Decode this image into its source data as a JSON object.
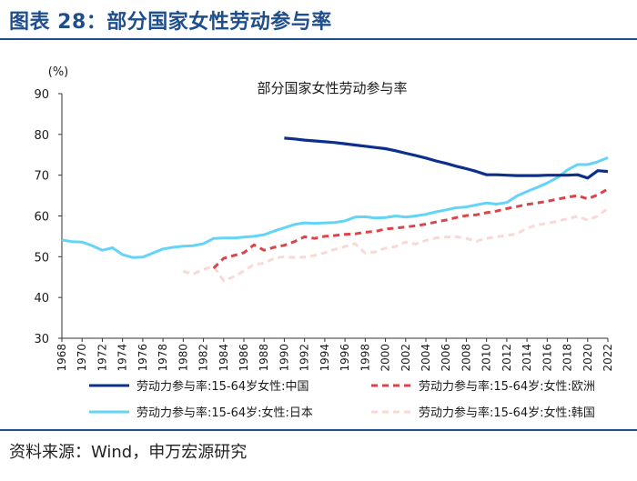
{
  "figure_title": "图表 28：部分国家女性劳动参与率",
  "source": "资料来源：Wind，申万宏源研究",
  "chart_data": {
    "type": "line",
    "title": "部分国家女性劳动参与率",
    "ylabel": "(%)",
    "xlabel": "",
    "ylim": [
      30,
      90
    ],
    "yticks": [
      30,
      40,
      50,
      60,
      70,
      80,
      90
    ],
    "xlim": [
      1968,
      2022
    ],
    "xticks": [
      1968,
      1970,
      1972,
      1974,
      1976,
      1978,
      1980,
      1982,
      1984,
      1986,
      1988,
      1990,
      1992,
      1994,
      1996,
      1998,
      2000,
      2002,
      2004,
      2006,
      2008,
      2010,
      2012,
      2014,
      2016,
      2018,
      2020,
      2022
    ],
    "grid": false,
    "series": [
      {
        "name": "劳动力参与率:15-64岁女性:中国",
        "color": "#0b2f8a",
        "style": "solid",
        "x": [
          1990,
          1991,
          1992,
          1993,
          1994,
          1995,
          1996,
          1997,
          1998,
          1999,
          2000,
          2001,
          2002,
          2003,
          2004,
          2005,
          2006,
          2007,
          2008,
          2009,
          2010,
          2011,
          2012,
          2013,
          2014,
          2015,
          2016,
          2017,
          2018,
          2019,
          2020,
          2021,
          2022
        ],
        "values": [
          79.1,
          78.9,
          78.6,
          78.4,
          78.2,
          78.0,
          77.7,
          77.4,
          77.1,
          76.8,
          76.5,
          76.0,
          75.4,
          74.8,
          74.2,
          73.5,
          72.9,
          72.2,
          71.6,
          70.9,
          70.1,
          70.1,
          70.0,
          69.9,
          69.9,
          69.9,
          70.0,
          70.0,
          70.0,
          70.1,
          69.3,
          71.1,
          70.9
        ]
      },
      {
        "name": "劳动力参与率:15-64岁:女性:欧洲",
        "color": "#d9454a",
        "style": "dashed",
        "x": [
          1983,
          1984,
          1985,
          1986,
          1987,
          1988,
          1989,
          1990,
          1991,
          1992,
          1993,
          1994,
          1995,
          1996,
          1997,
          1998,
          1999,
          2000,
          2001,
          2002,
          2003,
          2004,
          2005,
          2006,
          2007,
          2008,
          2009,
          2010,
          2011,
          2012,
          2013,
          2014,
          2015,
          2016,
          2017,
          2018,
          2019,
          2020,
          2021,
          2022
        ],
        "values": [
          47.2,
          49.6,
          50.3,
          51.0,
          52.9,
          51.6,
          52.3,
          52.8,
          53.7,
          54.9,
          54.5,
          55.0,
          55.2,
          55.5,
          55.6,
          56.0,
          56.2,
          56.8,
          57.0,
          57.3,
          57.6,
          58.0,
          58.5,
          59.0,
          59.6,
          60.1,
          60.3,
          60.8,
          61.2,
          61.8,
          62.3,
          62.8,
          63.2,
          63.6,
          64.1,
          64.6,
          65.0,
          64.2,
          65.2,
          66.6
        ]
      },
      {
        "name": "劳动力参与率:15-64岁:女性:日本",
        "color": "#63d3f7",
        "style": "solid",
        "x": [
          1968,
          1969,
          1970,
          1971,
          1972,
          1973,
          1974,
          1975,
          1976,
          1977,
          1978,
          1979,
          1980,
          1981,
          1982,
          1983,
          1984,
          1985,
          1986,
          1987,
          1988,
          1989,
          1990,
          1991,
          1992,
          1993,
          1994,
          1995,
          1996,
          1997,
          1998,
          1999,
          2000,
          2001,
          2002,
          2003,
          2004,
          2005,
          2006,
          2007,
          2008,
          2009,
          2010,
          2011,
          2012,
          2013,
          2014,
          2015,
          2016,
          2017,
          2018,
          2019,
          2020,
          2021,
          2022
        ],
        "values": [
          54.1,
          53.7,
          53.6,
          52.7,
          51.6,
          52.2,
          50.5,
          49.8,
          49.9,
          50.9,
          51.9,
          52.3,
          52.6,
          52.7,
          53.2,
          54.5,
          54.6,
          54.6,
          54.8,
          55.0,
          55.4,
          56.3,
          57.1,
          57.9,
          58.3,
          58.2,
          58.3,
          58.4,
          58.8,
          59.7,
          59.8,
          59.5,
          59.6,
          60.0,
          59.7,
          60.0,
          60.4,
          61.0,
          61.5,
          62.0,
          62.2,
          62.7,
          63.2,
          62.9,
          63.3,
          64.9,
          66.0,
          67.0,
          68.1,
          69.4,
          71.3,
          72.6,
          72.6,
          73.3,
          74.3
        ]
      },
      {
        "name": "劳动力参与率:15-64岁:女性:韩国",
        "color": "#f8d9d6",
        "style": "dashed",
        "x": [
          1980,
          1981,
          1982,
          1983,
          1984,
          1985,
          1986,
          1987,
          1988,
          1989,
          1990,
          1991,
          1992,
          1993,
          1994,
          1995,
          1996,
          1997,
          1998,
          1999,
          2000,
          2001,
          2002,
          2003,
          2004,
          2005,
          2006,
          2007,
          2008,
          2009,
          2010,
          2011,
          2012,
          2013,
          2014,
          2015,
          2016,
          2017,
          2018,
          2019,
          2020,
          2021,
          2022
        ],
        "values": [
          46.4,
          45.8,
          46.9,
          47.6,
          44.1,
          45.1,
          46.5,
          48.1,
          48.4,
          49.6,
          50.0,
          49.8,
          49.9,
          50.3,
          51.0,
          51.8,
          52.5,
          53.2,
          50.9,
          51.2,
          52.1,
          52.5,
          53.6,
          53.1,
          54.0,
          54.6,
          54.8,
          54.9,
          54.5,
          53.8,
          54.5,
          54.9,
          55.2,
          55.6,
          57.0,
          57.8,
          58.2,
          58.7,
          59.3,
          59.9,
          59.0,
          60.0,
          61.9
        ]
      }
    ]
  }
}
